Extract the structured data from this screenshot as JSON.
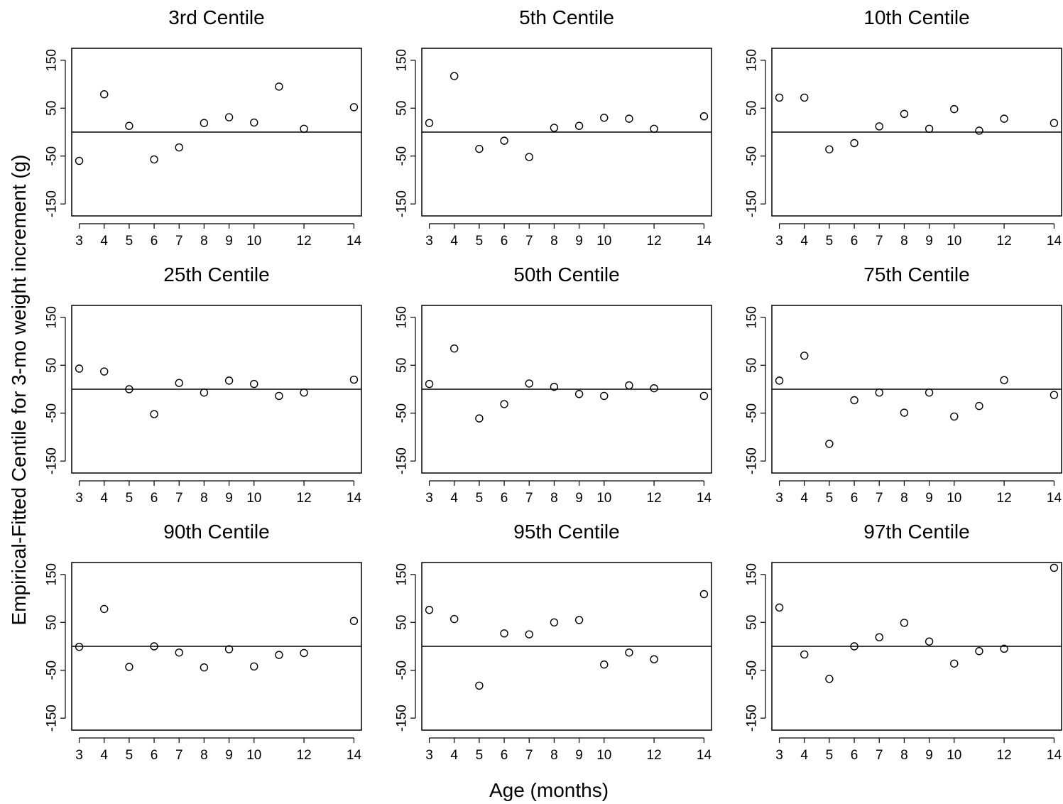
{
  "figure": {
    "xlabel": "Age (months)",
    "ylabel": "Empirical-Fitted Centile for 3-mo weight increment (g)"
  },
  "chart_data": [
    {
      "type": "scatter",
      "title": "3rd Centile",
      "x": [
        3,
        4,
        5,
        6,
        7,
        8,
        9,
        10,
        11,
        12,
        14
      ],
      "y": [
        -60,
        79,
        13,
        -57,
        -32,
        19,
        31,
        20,
        95,
        7,
        52
      ],
      "xticks": [
        3,
        4,
        5,
        6,
        7,
        8,
        9,
        10,
        12,
        14
      ],
      "yticks": [
        -150,
        -50,
        50,
        150
      ],
      "xlim": [
        2.7,
        14.3
      ],
      "ylim": [
        -175,
        175
      ],
      "hline": 0
    },
    {
      "type": "scatter",
      "title": "5th Centile",
      "x": [
        3,
        4,
        5,
        6,
        7,
        8,
        9,
        10,
        11,
        12,
        14
      ],
      "y": [
        19,
        117,
        -35,
        -18,
        -52,
        9,
        13,
        30,
        28,
        7,
        33
      ],
      "xticks": [
        3,
        4,
        5,
        6,
        7,
        8,
        9,
        10,
        12,
        14
      ],
      "yticks": [
        -150,
        -50,
        50,
        150
      ],
      "xlim": [
        2.7,
        14.3
      ],
      "ylim": [
        -175,
        175
      ],
      "hline": 0
    },
    {
      "type": "scatter",
      "title": "10th Centile",
      "x": [
        3,
        4,
        5,
        6,
        7,
        8,
        9,
        10,
        11,
        12,
        14
      ],
      "y": [
        72,
        72,
        -36,
        -23,
        12,
        38,
        7,
        48,
        3,
        28,
        19
      ],
      "xticks": [
        3,
        4,
        5,
        6,
        7,
        8,
        9,
        10,
        12,
        14
      ],
      "yticks": [
        -150,
        -50,
        50,
        150
      ],
      "xlim": [
        2.7,
        14.3
      ],
      "ylim": [
        -175,
        175
      ],
      "hline": 0
    },
    {
      "type": "scatter",
      "title": "25th Centile",
      "x": [
        3,
        4,
        5,
        6,
        7,
        8,
        9,
        10,
        11,
        12,
        14
      ],
      "y": [
        43,
        37,
        0,
        -52,
        13,
        -7,
        18,
        11,
        -14,
        -7,
        20
      ],
      "xticks": [
        3,
        4,
        5,
        6,
        7,
        8,
        9,
        10,
        12,
        14
      ],
      "yticks": [
        -150,
        -50,
        50,
        150
      ],
      "xlim": [
        2.7,
        14.3
      ],
      "ylim": [
        -175,
        175
      ],
      "hline": 0
    },
    {
      "type": "scatter",
      "title": "50th Centile",
      "x": [
        3,
        4,
        5,
        6,
        7,
        8,
        9,
        10,
        11,
        12,
        14
      ],
      "y": [
        11,
        85,
        -61,
        -31,
        12,
        5,
        -10,
        -14,
        8,
        2,
        -14
      ],
      "xticks": [
        3,
        4,
        5,
        6,
        7,
        8,
        9,
        10,
        12,
        14
      ],
      "yticks": [
        -150,
        -50,
        50,
        150
      ],
      "xlim": [
        2.7,
        14.3
      ],
      "ylim": [
        -175,
        175
      ],
      "hline": 0
    },
    {
      "type": "scatter",
      "title": "75th Centile",
      "x": [
        3,
        4,
        5,
        6,
        7,
        8,
        9,
        10,
        11,
        12,
        14
      ],
      "y": [
        18,
        70,
        -114,
        -23,
        -7,
        -49,
        -7,
        -57,
        -35,
        19,
        -12
      ],
      "xticks": [
        3,
        4,
        5,
        6,
        7,
        8,
        9,
        10,
        12,
        14
      ],
      "yticks": [
        -150,
        -50,
        50,
        150
      ],
      "xlim": [
        2.7,
        14.3
      ],
      "ylim": [
        -175,
        175
      ],
      "hline": 0
    },
    {
      "type": "scatter",
      "title": "90th Centile",
      "x": [
        3,
        4,
        5,
        6,
        7,
        8,
        9,
        10,
        11,
        12,
        14
      ],
      "y": [
        -1,
        78,
        -43,
        0,
        -13,
        -44,
        -6,
        -42,
        -18,
        -14,
        53
      ],
      "xticks": [
        3,
        4,
        5,
        6,
        7,
        8,
        9,
        10,
        12,
        14
      ],
      "yticks": [
        -150,
        -50,
        50,
        150
      ],
      "xlim": [
        2.7,
        14.3
      ],
      "ylim": [
        -175,
        175
      ],
      "hline": 0
    },
    {
      "type": "scatter",
      "title": "95th Centile",
      "x": [
        3,
        4,
        5,
        6,
        7,
        8,
        9,
        10,
        11,
        12,
        14
      ],
      "y": [
        76,
        57,
        -82,
        27,
        25,
        50,
        55,
        -38,
        -13,
        -27,
        109
      ],
      "xticks": [
        3,
        4,
        5,
        6,
        7,
        8,
        9,
        10,
        12,
        14
      ],
      "yticks": [
        -150,
        -50,
        50,
        150
      ],
      "xlim": [
        2.7,
        14.3
      ],
      "ylim": [
        -175,
        175
      ],
      "hline": 0
    },
    {
      "type": "scatter",
      "title": "97th Centile",
      "x": [
        3,
        4,
        5,
        6,
        7,
        8,
        9,
        10,
        11,
        12,
        14
      ],
      "y": [
        81,
        -17,
        -68,
        0,
        19,
        49,
        10,
        -36,
        -10,
        -5,
        164
      ],
      "xticks": [
        3,
        4,
        5,
        6,
        7,
        8,
        9,
        10,
        12,
        14
      ],
      "yticks": [
        -150,
        -50,
        50,
        150
      ],
      "xlim": [
        2.7,
        14.3
      ],
      "ylim": [
        -175,
        175
      ],
      "hline": 0
    }
  ]
}
